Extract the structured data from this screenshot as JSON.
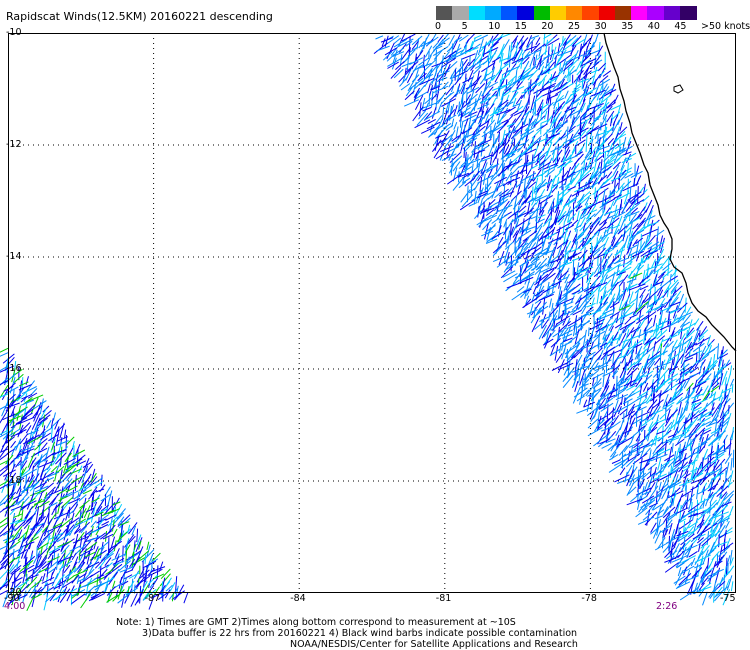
{
  "title": "Rapidscat Winds(12.5KM) 20160221 descending",
  "scale": {
    "labels": [
      "0",
      "5",
      "10",
      "15",
      "20",
      "25",
      "30",
      "35",
      "40",
      "45",
      ">50 knots"
    ],
    "colors": [
      "#555555",
      "#aaaaaa",
      "#00ddff",
      "#00aaff",
      "#0055ff",
      "#0000dd",
      "#00bb00",
      "#ffcc00",
      "#ff8800",
      "#ff4400",
      "#ee0000",
      "#993300",
      "#ff00ff",
      "#aa00ff",
      "#6600cc",
      "#330066"
    ]
  },
  "map": {
    "lat_labels": [
      "-10",
      "-12",
      "-14",
      "-16",
      "-18",
      "-20"
    ],
    "lon_labels": [
      "-90",
      "-87",
      "-84",
      "-81",
      "-78",
      "-75"
    ],
    "lat_range": [
      -20,
      -10
    ],
    "lon_range": [
      -90,
      -75
    ],
    "gridlines": true,
    "coastline": "Peru",
    "barb_colors": {
      "low": "#00ccff",
      "mid": "#0088ff",
      "high": "#0000ee",
      "strong": "#00cc00"
    }
  },
  "times": {
    "left": "4:00",
    "right": "2:26"
  },
  "notes": {
    "line1": "Note: 1) Times are GMT 2)Times along bottom correspond to measurement at ~10S",
    "line2": "3)Data buffer is 22 hrs from 20160221 4) Black wind barbs indicate possible contamination",
    "line3": "NOAA/NESDIS/Center for Satellite Applications and Research"
  }
}
